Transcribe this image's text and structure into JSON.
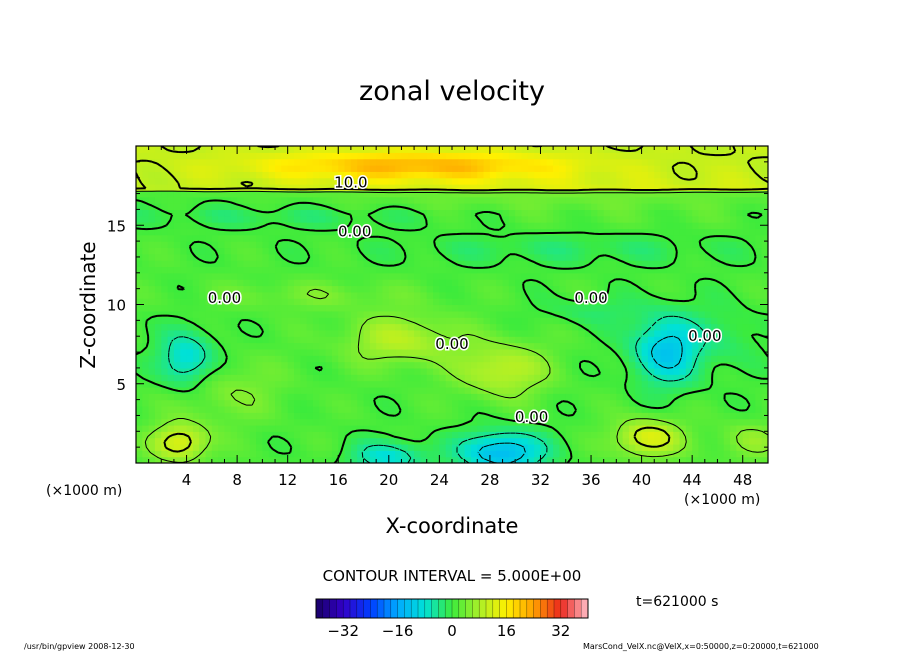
{
  "chart_data": {
    "type": "heatmap",
    "title": "zonal velocity",
    "xlabel": "X-coordinate",
    "ylabel": "Z-coordinate",
    "x_unit_left": "(×1000 m)",
    "x_unit_right": "(×1000 m)",
    "xlim": [
      0,
      50
    ],
    "ylim": [
      0,
      20
    ],
    "x_ticks": [
      4,
      8,
      12,
      16,
      20,
      24,
      28,
      32,
      36,
      40,
      44,
      48
    ],
    "y_ticks": [
      5,
      10,
      15
    ],
    "contour_interval_text": "CONTOUR INTERVAL = 5.000E+00",
    "contour_labels": [
      {
        "text": "10.0",
        "x": 17.0,
        "y": 17.7
      },
      {
        "text": "0.00",
        "x": 17.3,
        "y": 14.6
      },
      {
        "text": "0.00",
        "x": 7.0,
        "y": 10.4
      },
      {
        "text": "0.00",
        "x": 36.0,
        "y": 10.4
      },
      {
        "text": "0.00",
        "x": 25.0,
        "y": 7.5
      },
      {
        "text": "0.00",
        "x": 45.0,
        "y": 8.0
      },
      {
        "text": "0.00",
        "x": 31.3,
        "y": 2.9
      }
    ],
    "colorbar": {
      "range": [
        -40,
        40
      ],
      "ticks": [
        -32,
        -16,
        0,
        16,
        32
      ],
      "tick_labels": [
        "−32",
        "−16",
        "0",
        "16",
        "32"
      ]
    },
    "time_label": "t=621000 s"
  },
  "footer": {
    "left": "/usr/bin/gpview   2008-12-30",
    "right": "MarsCond_VelX.nc@VelX,x=0:50000,z=0:20000,t=621000"
  },
  "colors": {
    "background": "#ffffff",
    "frame": "#000000",
    "min": "#1a0066",
    "zero": "#44ee44",
    "max": "#ffc0c8"
  }
}
